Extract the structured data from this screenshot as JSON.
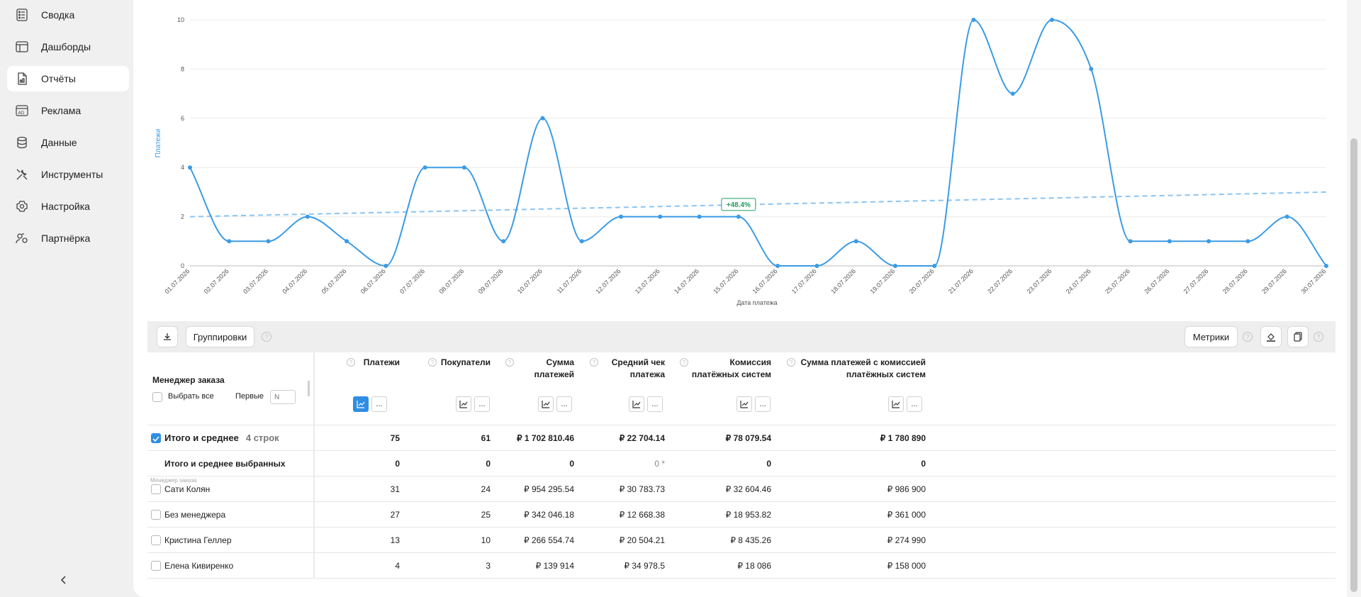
{
  "sidebar": {
    "items": [
      {
        "label": "Сводка",
        "icon": "list-icon"
      },
      {
        "label": "Дашборды",
        "icon": "dashboard-icon"
      },
      {
        "label": "Отчёты",
        "icon": "report-icon",
        "active": true
      },
      {
        "label": "Реклама",
        "icon": "ads-icon"
      },
      {
        "label": "Данные",
        "icon": "database-icon"
      },
      {
        "label": "Инструменты",
        "icon": "tools-icon"
      },
      {
        "label": "Настройка",
        "icon": "settings-icon"
      },
      {
        "label": "Партнёрка",
        "icon": "partners-icon"
      }
    ],
    "collapse_icon": "chevron-left-icon"
  },
  "chart_data": {
    "type": "line",
    "xlabel": "Дата платежа",
    "ylabel": "Платежи",
    "ylim": [
      0,
      10
    ],
    "yticks": [
      "0",
      "2",
      "4",
      "6",
      "8",
      "10"
    ],
    "x": [
      "01.07.2026",
      "02.07.2026",
      "03.07.2026",
      "04.07.2026",
      "05.07.2026",
      "06.07.2026",
      "07.07.2026",
      "08.07.2026",
      "09.07.2026",
      "10.07.2026",
      "11.07.2026",
      "12.07.2026",
      "13.07.2026",
      "14.07.2026",
      "15.07.2026",
      "16.07.2026",
      "17.07.2026",
      "18.07.2026",
      "19.07.2026",
      "20.07.2026",
      "21.07.2026",
      "22.07.2026",
      "23.07.2026",
      "24.07.2026",
      "25.07.2026",
      "26.07.2026",
      "27.07.2026",
      "28.07.2026",
      "29.07.2026",
      "30.07.2026"
    ],
    "series": [
      {
        "values": [
          4,
          1,
          1,
          2,
          1,
          0,
          4,
          4,
          1,
          6,
          1,
          2,
          2,
          2,
          2,
          0,
          0,
          1,
          0,
          0,
          10,
          7,
          10,
          8,
          1,
          1,
          1,
          1,
          2,
          0
        ],
        "color": "#3a9be6"
      }
    ],
    "trend": {
      "start": 2,
      "end": 3,
      "label": "+48.4%",
      "label_index": 14,
      "color": "#8cc4f2"
    },
    "grid": true,
    "trend_label_color": "#1fa05a"
  },
  "toolbar": {
    "download_icon": "download-icon",
    "groupings_label": "Группировки",
    "metrics_label": "Метрики",
    "fill_icon": "paint-bucket-icon",
    "copy_icon": "copy-icon",
    "help_glyph": "?"
  },
  "table": {
    "group_header": "Менеджер заказа",
    "select_all_label": "Выбрать все",
    "first_label": "Первые",
    "first_placeholder": "N",
    "columns": [
      {
        "title": "Платежи",
        "title2": ""
      },
      {
        "title": "Покупатели",
        "title2": ""
      },
      {
        "title": "Сумма",
        "title2": "платежей"
      },
      {
        "title": "Средний чек",
        "title2": "платежа"
      },
      {
        "title": "Комиссия",
        "title2": "платёжных систем"
      },
      {
        "title": "Сумма платежей с комиссией",
        "title2": "платёжных систем"
      }
    ],
    "chart_icon": "chart-icon",
    "more_label": "...",
    "total": {
      "label": "Итого и среднее",
      "count": "4 строк",
      "values": [
        "75",
        "61",
        "₽ 1 702 810.46",
        "₽ 22 704.14",
        "₽ 78 079.54",
        "₽ 1 780 890"
      ]
    },
    "selected_total": {
      "label": "Итого и среднее выбранных",
      "values": [
        "0",
        "0",
        "0",
        "0 *",
        "0",
        "0"
      ]
    },
    "row_caption": "Менеджер заказа",
    "rows": [
      {
        "name": "Сати Колян",
        "values": [
          "31",
          "24",
          "₽ 954 295.54",
          "₽ 30 783.73",
          "₽ 32 604.46",
          "₽ 986 900"
        ]
      },
      {
        "name": "Без менеджера",
        "values": [
          "27",
          "25",
          "₽ 342 046.18",
          "₽ 12 668.38",
          "₽ 18 953.82",
          "₽ 361 000"
        ]
      },
      {
        "name": "Кристина Геллер",
        "values": [
          "13",
          "10",
          "₽ 266 554.74",
          "₽ 20 504.21",
          "₽ 8 435.26",
          "₽ 274 990"
        ]
      },
      {
        "name": "Елена Кивиренко",
        "values": [
          "4",
          "3",
          "₽ 139 914",
          "₽ 34 978.5",
          "₽ 18 086",
          "₽ 158 000"
        ]
      }
    ]
  }
}
